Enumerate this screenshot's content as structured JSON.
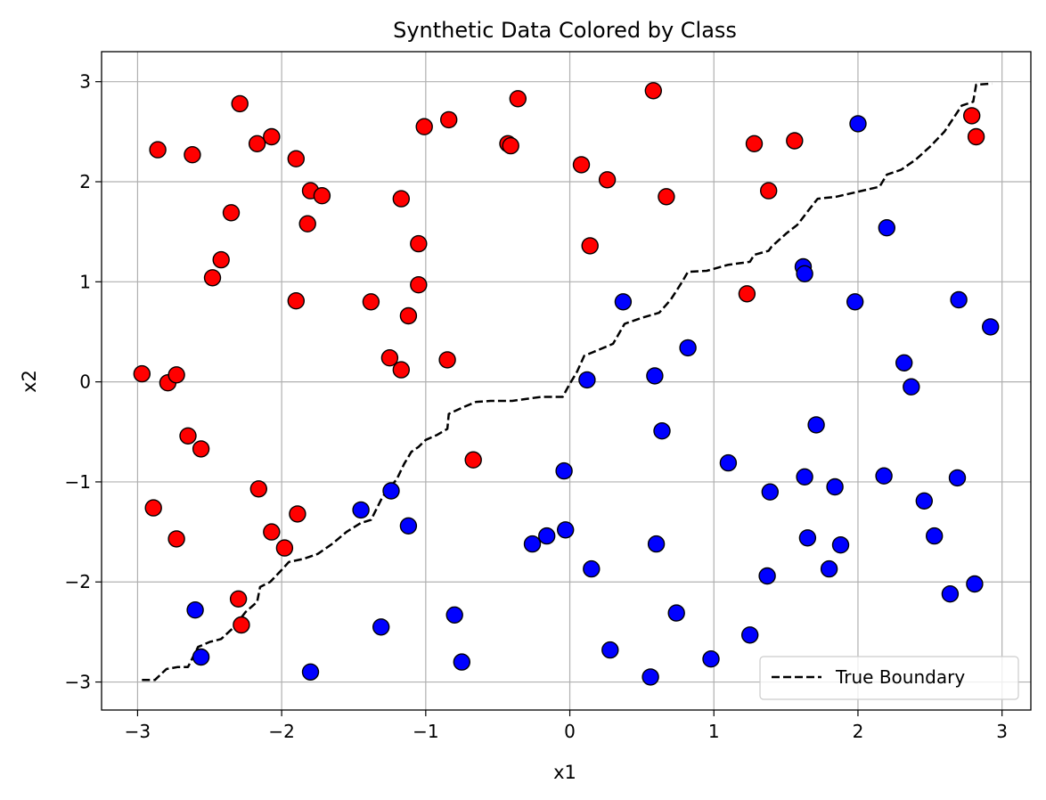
{
  "chart_data": {
    "type": "scatter",
    "title": "Synthetic Data Colored by Class",
    "xlabel": "x1",
    "ylabel": "x2",
    "xlim": [
      -3.25,
      3.2
    ],
    "ylim": [
      -3.28,
      3.3
    ],
    "xticks": [
      -3,
      -2,
      -1,
      0,
      1,
      2,
      3
    ],
    "yticks": [
      -3,
      -2,
      -1,
      0,
      1,
      2,
      3
    ],
    "grid": true,
    "legend": {
      "placement": "bottom-right",
      "entries": [
        "True Boundary"
      ]
    },
    "colors": {
      "class_red": "#ff0000",
      "class_blue": "#0000ff",
      "marker_edge": "#000000",
      "boundary": "#000000",
      "grid": "#b0b0b0"
    },
    "series": [
      {
        "color": "#ff0000",
        "points": [
          [
            -2.97,
            0.08
          ],
          [
            -2.86,
            2.32
          ],
          [
            -2.89,
            -1.26
          ],
          [
            -2.79,
            -0.01
          ],
          [
            -2.73,
            0.07
          ],
          [
            -2.73,
            -1.57
          ],
          [
            -2.65,
            -0.54
          ],
          [
            -2.62,
            2.27
          ],
          [
            -2.56,
            -0.67
          ],
          [
            -2.48,
            1.04
          ],
          [
            -2.42,
            1.22
          ],
          [
            -2.35,
            1.69
          ],
          [
            -2.29,
            2.78
          ],
          [
            -2.3,
            -2.17
          ],
          [
            -2.28,
            -2.43
          ],
          [
            -2.16,
            -1.07
          ],
          [
            -2.17,
            2.38
          ],
          [
            -2.07,
            2.45
          ],
          [
            -2.07,
            -1.5
          ],
          [
            -1.98,
            -1.66
          ],
          [
            -1.9,
            0.81
          ],
          [
            -1.89,
            -1.32
          ],
          [
            -1.9,
            2.23
          ],
          [
            -1.82,
            1.58
          ],
          [
            -1.8,
            1.91
          ],
          [
            -1.72,
            1.86
          ],
          [
            -1.38,
            0.8
          ],
          [
            -1.25,
            0.24
          ],
          [
            -1.17,
            0.12
          ],
          [
            -1.17,
            1.83
          ],
          [
            -1.12,
            0.66
          ],
          [
            -1.05,
            0.97
          ],
          [
            -1.05,
            1.38
          ],
          [
            -1.01,
            2.55
          ],
          [
            -0.85,
            0.22
          ],
          [
            -0.84,
            2.62
          ],
          [
            -0.67,
            -0.78
          ],
          [
            -0.43,
            2.38
          ],
          [
            -0.41,
            2.36
          ],
          [
            -0.36,
            2.83
          ],
          [
            0.08,
            2.17
          ],
          [
            0.14,
            1.36
          ],
          [
            0.26,
            2.02
          ],
          [
            0.58,
            2.91
          ],
          [
            0.67,
            1.85
          ],
          [
            1.23,
            0.88
          ],
          [
            1.28,
            2.38
          ],
          [
            1.38,
            1.91
          ],
          [
            1.56,
            2.41
          ],
          [
            2.79,
            2.66
          ],
          [
            2.82,
            2.45
          ]
        ]
      },
      {
        "color": "#0000ff",
        "points": [
          [
            -2.6,
            -2.28
          ],
          [
            -2.56,
            -2.75
          ],
          [
            -1.8,
            -2.9
          ],
          [
            -1.45,
            -1.28
          ],
          [
            -1.31,
            -2.45
          ],
          [
            -1.24,
            -1.09
          ],
          [
            -1.12,
            -1.44
          ],
          [
            -0.8,
            -2.33
          ],
          [
            -0.75,
            -2.8
          ],
          [
            -0.26,
            -1.62
          ],
          [
            -0.16,
            -1.54
          ],
          [
            -0.03,
            -1.48
          ],
          [
            -0.04,
            -0.89
          ],
          [
            0.12,
            0.02
          ],
          [
            0.15,
            -1.87
          ],
          [
            0.28,
            -2.68
          ],
          [
            0.37,
            0.8
          ],
          [
            0.56,
            -2.95
          ],
          [
            0.59,
            0.06
          ],
          [
            0.6,
            -1.62
          ],
          [
            0.64,
            -0.49
          ],
          [
            0.74,
            -2.31
          ],
          [
            0.82,
            0.34
          ],
          [
            0.98,
            -2.77
          ],
          [
            1.1,
            -0.81
          ],
          [
            1.25,
            -2.53
          ],
          [
            1.37,
            -1.94
          ],
          [
            1.39,
            -1.1
          ],
          [
            1.62,
            1.15
          ],
          [
            1.63,
            1.08
          ],
          [
            1.63,
            -0.95
          ],
          [
            1.65,
            -1.56
          ],
          [
            1.71,
            -0.43
          ],
          [
            1.8,
            -1.87
          ],
          [
            1.84,
            -1.05
          ],
          [
            1.88,
            -1.63
          ],
          [
            1.98,
            0.8
          ],
          [
            2.0,
            2.58
          ],
          [
            2.18,
            -0.94
          ],
          [
            2.2,
            1.54
          ],
          [
            2.32,
            0.19
          ],
          [
            2.37,
            -0.05
          ],
          [
            2.46,
            -1.19
          ],
          [
            2.53,
            -1.54
          ],
          [
            2.64,
            -2.12
          ],
          [
            2.69,
            -0.96
          ],
          [
            2.7,
            0.82
          ],
          [
            2.81,
            -2.02
          ],
          [
            2.92,
            0.55
          ]
        ]
      },
      {
        "name": "True Boundary",
        "color": "#000000",
        "style": "dashed",
        "points": [
          [
            -2.97,
            -2.98
          ],
          [
            -2.88,
            -2.98
          ],
          [
            -2.8,
            -2.87
          ],
          [
            -2.72,
            -2.85
          ],
          [
            -2.65,
            -2.85
          ],
          [
            -2.58,
            -2.65
          ],
          [
            -2.5,
            -2.6
          ],
          [
            -2.42,
            -2.57
          ],
          [
            -2.33,
            -2.45
          ],
          [
            -2.25,
            -2.3
          ],
          [
            -2.17,
            -2.2
          ],
          [
            -2.15,
            -2.05
          ],
          [
            -2.08,
            -2.0
          ],
          [
            -2.0,
            -1.88
          ],
          [
            -1.95,
            -1.8
          ],
          [
            -1.85,
            -1.77
          ],
          [
            -1.75,
            -1.72
          ],
          [
            -1.65,
            -1.62
          ],
          [
            -1.55,
            -1.5
          ],
          [
            -1.45,
            -1.41
          ],
          [
            -1.38,
            -1.38
          ],
          [
            -1.3,
            -1.15
          ],
          [
            -1.2,
            -0.97
          ],
          [
            -1.15,
            -0.82
          ],
          [
            -1.1,
            -0.7
          ],
          [
            -1.05,
            -0.65
          ],
          [
            -1.0,
            -0.58
          ],
          [
            -0.92,
            -0.53
          ],
          [
            -0.85,
            -0.47
          ],
          [
            -0.84,
            -0.32
          ],
          [
            -0.75,
            -0.26
          ],
          [
            -0.65,
            -0.2
          ],
          [
            -0.55,
            -0.19
          ],
          [
            -0.4,
            -0.19
          ],
          [
            -0.2,
            -0.15
          ],
          [
            -0.05,
            -0.15
          ],
          [
            0.0,
            -0.02
          ],
          [
            0.05,
            0.1
          ],
          [
            0.1,
            0.26
          ],
          [
            0.2,
            0.32
          ],
          [
            0.3,
            0.38
          ],
          [
            0.38,
            0.58
          ],
          [
            0.5,
            0.64
          ],
          [
            0.62,
            0.69
          ],
          [
            0.7,
            0.82
          ],
          [
            0.78,
            1.0
          ],
          [
            0.82,
            1.1
          ],
          [
            0.95,
            1.11
          ],
          [
            1.1,
            1.17
          ],
          [
            1.25,
            1.2
          ],
          [
            1.28,
            1.27
          ],
          [
            1.38,
            1.31
          ],
          [
            1.4,
            1.35
          ],
          [
            1.5,
            1.48
          ],
          [
            1.58,
            1.57
          ],
          [
            1.66,
            1.72
          ],
          [
            1.72,
            1.83
          ],
          [
            1.85,
            1.85
          ],
          [
            2.0,
            1.9
          ],
          [
            2.15,
            1.95
          ],
          [
            2.2,
            2.07
          ],
          [
            2.3,
            2.12
          ],
          [
            2.4,
            2.22
          ],
          [
            2.5,
            2.35
          ],
          [
            2.6,
            2.5
          ],
          [
            2.72,
            2.76
          ],
          [
            2.8,
            2.8
          ],
          [
            2.82,
            2.97
          ],
          [
            2.93,
            2.98
          ]
        ]
      }
    ]
  }
}
